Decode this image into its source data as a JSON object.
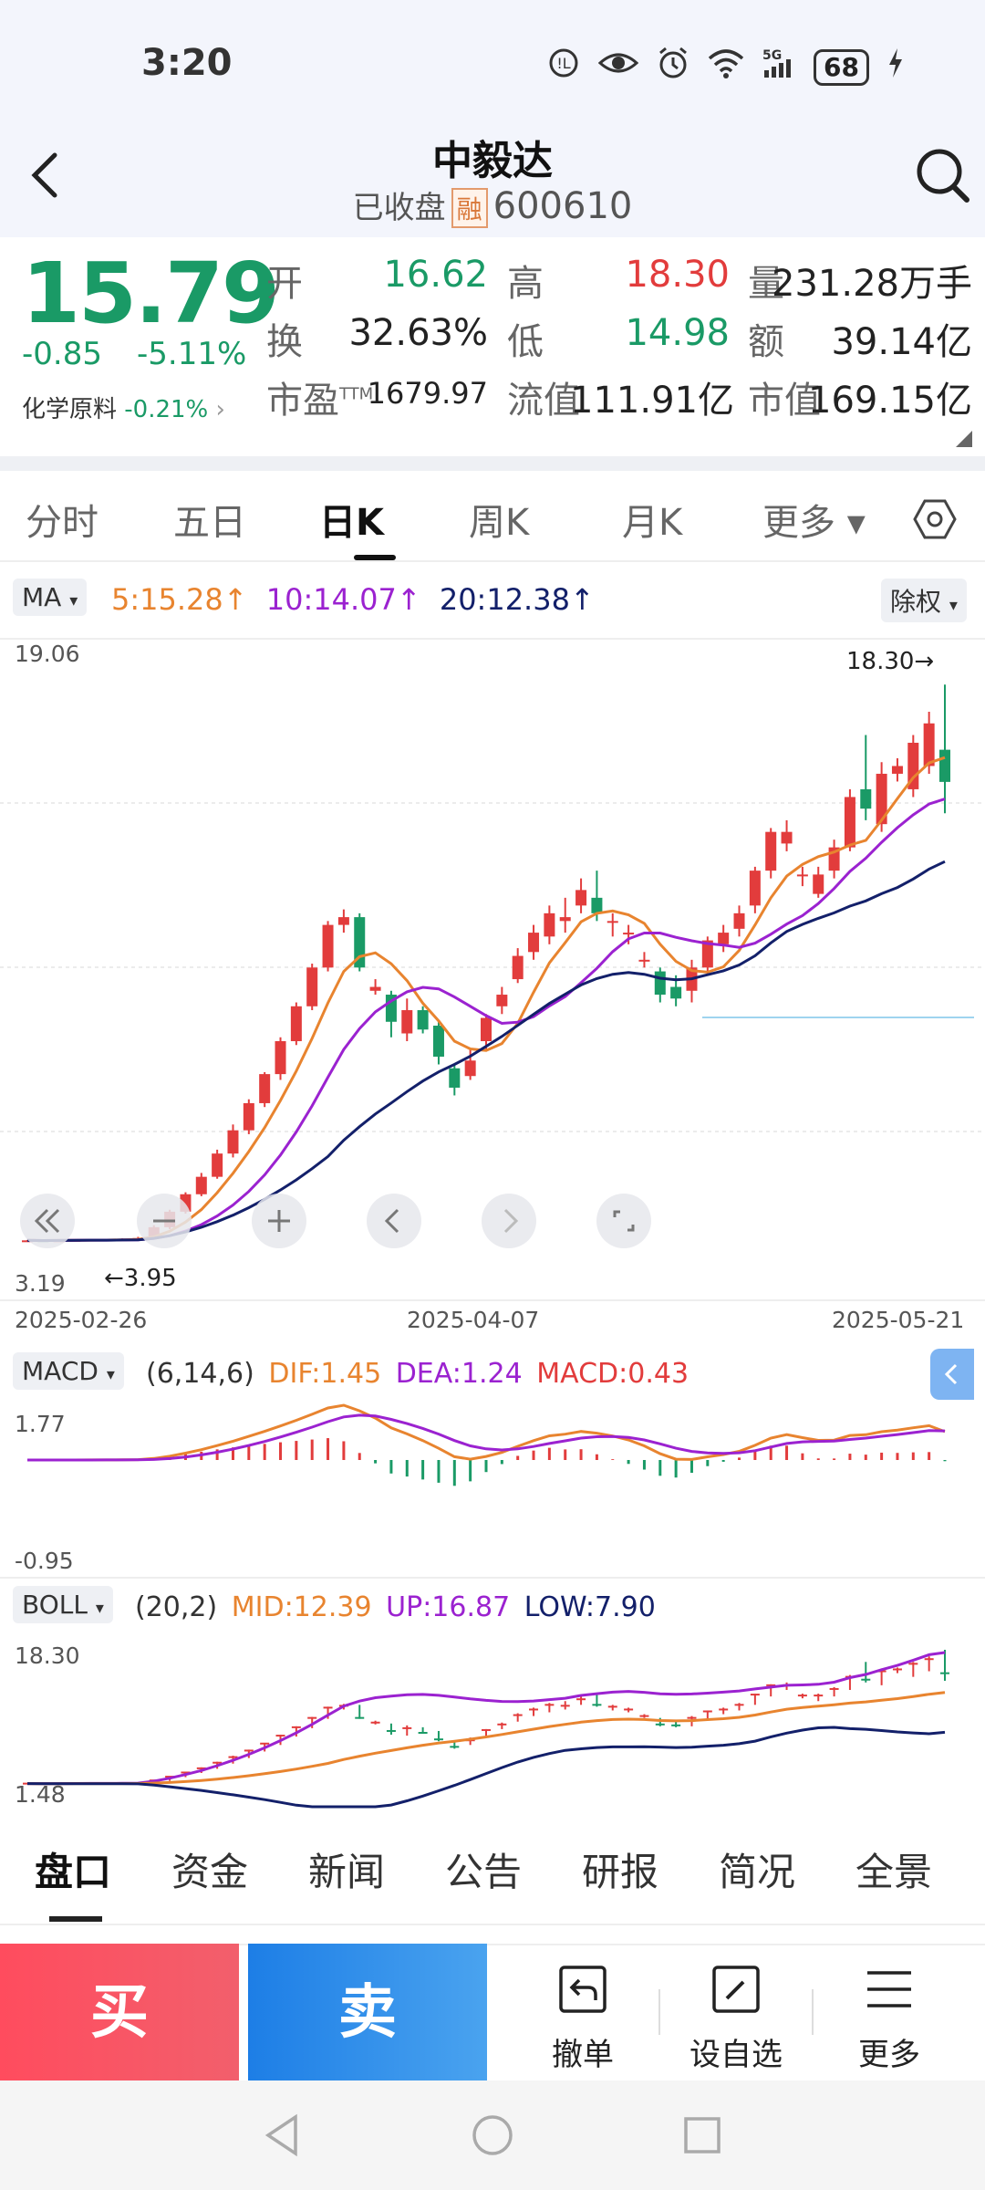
{
  "status_bar": {
    "time": "3:20",
    "icons": [
      "hd-call-icon",
      "eye-icon",
      "alarm-icon",
      "wifi-icon",
      "5g-signal-icon"
    ],
    "battery": "68"
  },
  "header": {
    "title": "中毅达",
    "status": "已收盘",
    "badge": "融",
    "code": "600610"
  },
  "quote": {
    "price": "15.79",
    "change": "-0.85",
    "change_pct": "-5.11%",
    "sector_name": "化学原料",
    "sector_change": "-0.21%",
    "fields": [
      {
        "label": "开",
        "value": "16.62",
        "color": "#1a9a66"
      },
      {
        "label": "高",
        "value": "18.30",
        "color": "#e23c3c"
      },
      {
        "label": "量",
        "value": "231.28万手",
        "color": "#222222"
      },
      {
        "label": "换",
        "value": "32.63%",
        "color": "#222222"
      },
      {
        "label": "低",
        "value": "14.98",
        "color": "#1a9a66"
      },
      {
        "label": "额",
        "value": "39.14亿",
        "color": "#222222"
      },
      {
        "label": "市盈",
        "sup": "TTM",
        "value": "1679.97",
        "color": "#222222"
      },
      {
        "label": "流值",
        "value": "111.91亿",
        "color": "#222222"
      },
      {
        "label": "市值",
        "value": "169.15亿",
        "color": "#222222"
      }
    ]
  },
  "tabs": [
    "分时",
    "五日",
    "日K",
    "周K",
    "月K",
    "更多"
  ],
  "active_tab": "日K",
  "ma_bar": {
    "selector": "MA",
    "ma5": "5:15.28",
    "ma10": "10:14.07",
    "ma20": "20:12.38",
    "adjust": "除权",
    "colors": {
      "ma5": "#e8842f",
      "ma10": "#9b22d0",
      "ma20": "#13206a"
    }
  },
  "kline": {
    "y_max_label": "19.06",
    "y_min_label": "3.19",
    "high_marker": "18.30→",
    "low_marker": "←3.95",
    "dates": [
      "2025-02-26",
      "2025-04-07",
      "2025-05-21"
    ]
  },
  "macd": {
    "selector": "MACD",
    "params": "(6,14,6)",
    "dif": "DIF:1.45",
    "dea": "DEA:1.24",
    "macd": "MACD:0.43",
    "y_max": "1.77",
    "y_min": "-0.95"
  },
  "boll": {
    "selector": "BOLL",
    "params": "(20,2)",
    "mid": "MID:12.39",
    "up": "UP:16.87",
    "low": "LOW:7.90",
    "y_max": "18.30",
    "y_min": "1.48"
  },
  "bottom_tabs": [
    "盘口",
    "资金",
    "新闻",
    "公告",
    "研报",
    "简况",
    "全景"
  ],
  "actions": {
    "buy": "买",
    "sell": "卖",
    "cancel": "撤单",
    "watchlist": "设自选",
    "more": "更多"
  },
  "chart_data": {
    "type": "candlestick",
    "colors": {
      "up": "#e23c3c",
      "down": "#1a9a66"
    },
    "x_start": "2025-02-26",
    "x_mid": "2025-04-07",
    "x_end": "2025-05-21",
    "ylim": [
      3.19,
      19.06
    ],
    "candles": [
      [
        3.95,
        3.96,
        3.97,
        3.94
      ],
      [
        3.96,
        3.95,
        3.97,
        3.94
      ],
      [
        3.95,
        3.96,
        3.98,
        3.94
      ],
      [
        3.96,
        3.97,
        3.98,
        3.95
      ],
      [
        3.97,
        3.98,
        3.99,
        3.95
      ],
      [
        3.98,
        3.97,
        4.0,
        3.96
      ],
      [
        3.97,
        3.99,
        4.01,
        3.96
      ],
      [
        3.99,
        4.02,
        4.05,
        3.98
      ],
      [
        4.02,
        4.3,
        4.35,
        4.0
      ],
      [
        4.3,
        4.7,
        4.75,
        4.25
      ],
      [
        4.7,
        5.15,
        5.2,
        4.65
      ],
      [
        5.15,
        5.6,
        5.7,
        5.1
      ],
      [
        5.6,
        6.2,
        6.3,
        5.55
      ],
      [
        6.2,
        6.8,
        6.95,
        6.1
      ],
      [
        6.8,
        7.5,
        7.6,
        6.7
      ],
      [
        7.5,
        8.25,
        8.3,
        7.4
      ],
      [
        8.25,
        9.1,
        9.2,
        8.1
      ],
      [
        9.1,
        10.0,
        10.1,
        9.0
      ],
      [
        10.0,
        11.0,
        11.1,
        9.9
      ],
      [
        11.0,
        12.1,
        12.2,
        10.9
      ],
      [
        12.1,
        12.3,
        12.5,
        11.9
      ],
      [
        12.3,
        11.0,
        12.4,
        10.9
      ],
      [
        10.4,
        10.5,
        10.7,
        10.3
      ],
      [
        10.3,
        9.6,
        10.4,
        9.2
      ],
      [
        9.3,
        9.9,
        10.2,
        9.1
      ],
      [
        9.9,
        9.4,
        10.0,
        9.3
      ],
      [
        9.5,
        8.7,
        9.6,
        8.5
      ],
      [
        8.4,
        7.9,
        8.5,
        7.7
      ],
      [
        8.2,
        8.6,
        8.9,
        8.1
      ],
      [
        9.1,
        9.7,
        9.8,
        8.9
      ],
      [
        10.0,
        10.3,
        10.5,
        9.8
      ],
      [
        10.7,
        11.3,
        11.5,
        10.6
      ],
      [
        11.4,
        11.9,
        12.1,
        11.2
      ],
      [
        11.8,
        12.4,
        12.6,
        11.6
      ],
      [
        12.2,
        12.3,
        12.8,
        11.9
      ],
      [
        12.6,
        13.0,
        13.3,
        12.4
      ],
      [
        12.8,
        12.4,
        13.5,
        12.2
      ],
      [
        12.2,
        12.2,
        12.4,
        11.8
      ],
      [
        11.9,
        11.9,
        12.1,
        11.6
      ],
      [
        11.2,
        11.2,
        11.4,
        11.0
      ],
      [
        10.9,
        10.3,
        11.0,
        10.1
      ],
      [
        10.5,
        10.2,
        10.8,
        10.0
      ],
      [
        10.4,
        11.0,
        11.2,
        10.1
      ],
      [
        11.0,
        11.7,
        11.8,
        10.8
      ],
      [
        11.6,
        11.9,
        12.1,
        11.4
      ],
      [
        12.0,
        12.4,
        12.6,
        11.8
      ],
      [
        12.6,
        13.5,
        13.6,
        12.4
      ],
      [
        13.5,
        14.5,
        14.6,
        13.3
      ],
      [
        14.2,
        14.5,
        14.8,
        14.0
      ],
      [
        13.4,
        13.4,
        13.6,
        13.1
      ],
      [
        12.9,
        13.4,
        13.6,
        12.8
      ],
      [
        13.5,
        14.1,
        14.3,
        13.3
      ],
      [
        14.1,
        15.4,
        15.6,
        14.0
      ],
      [
        15.6,
        15.1,
        17.0,
        14.8
      ],
      [
        14.7,
        16.0,
        16.3,
        14.5
      ],
      [
        16.0,
        16.2,
        16.4,
        15.8
      ],
      [
        15.6,
        16.8,
        17.0,
        15.4
      ],
      [
        16.2,
        17.3,
        17.6,
        16.0
      ],
      [
        16.62,
        15.79,
        18.3,
        14.98
      ]
    ]
  }
}
